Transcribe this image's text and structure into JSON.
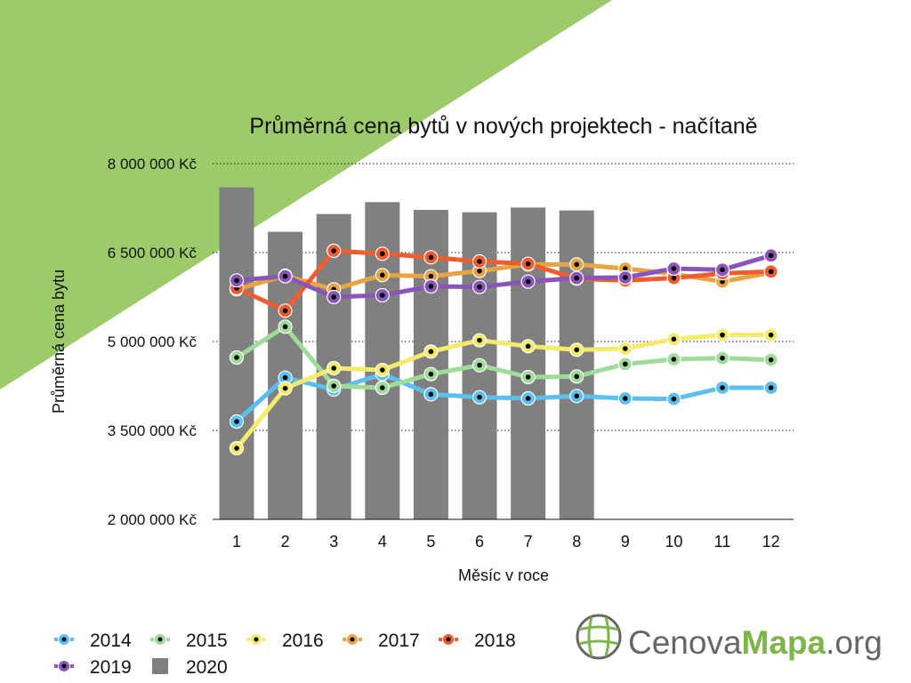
{
  "chart_data": {
    "type": "line",
    "title": "Průměrná cena bytů v nových projektech - načítaně",
    "xlabel": "Měsíc v roce",
    "ylabel": "Průměrná cena bytu",
    "ylim": [
      2000000,
      8000000
    ],
    "yticks": [
      {
        "value": 2000000,
        "label": "2 000 000 Kč"
      },
      {
        "value": 3500000,
        "label": "3 500 000 Kč"
      },
      {
        "value": 5000000,
        "label": "5 000 000 Kč"
      },
      {
        "value": 6500000,
        "label": "6 500 000 Kč"
      },
      {
        "value": 8000000,
        "label": "8 000 000 Kč"
      }
    ],
    "categories": [
      "1",
      "2",
      "3",
      "4",
      "5",
      "6",
      "7",
      "8",
      "9",
      "10",
      "11",
      "12"
    ],
    "grid": true,
    "legend_position": "bottom-left",
    "bars": {
      "name": "2020",
      "color": "#808080",
      "values": [
        7600000,
        6850000,
        7150000,
        7350000,
        7220000,
        7180000,
        7260000,
        7210000
      ]
    },
    "series": [
      {
        "name": "2014",
        "color": "#5bc0f0",
        "values": [
          3650000,
          4390000,
          4190000,
          4450000,
          4110000,
          4060000,
          4040000,
          4080000,
          4040000,
          4030000,
          4220000,
          4220000
        ]
      },
      {
        "name": "2015",
        "color": "#9fdc9a",
        "values": [
          4730000,
          5250000,
          4250000,
          4220000,
          4450000,
          4600000,
          4400000,
          4410000,
          4620000,
          4700000,
          4720000,
          4690000
        ]
      },
      {
        "name": "2016",
        "color": "#f3eb69",
        "values": [
          3200000,
          4210000,
          4550000,
          4520000,
          4830000,
          5020000,
          4920000,
          4860000,
          4880000,
          5040000,
          5110000,
          5110000
        ]
      },
      {
        "name": "2017",
        "color": "#e8a440",
        "values": [
          5880000,
          6110000,
          5880000,
          6120000,
          6100000,
          6190000,
          6300000,
          6300000,
          6230000,
          6140000,
          6010000,
          6160000
        ]
      },
      {
        "name": "2018",
        "color": "#ef5c2f",
        "values": [
          5900000,
          5520000,
          6530000,
          6480000,
          6420000,
          6350000,
          6310000,
          6060000,
          6030000,
          6070000,
          6150000,
          6180000
        ]
      },
      {
        "name": "2019",
        "color": "#8a55b8",
        "values": [
          6030000,
          6100000,
          5750000,
          5780000,
          5930000,
          5920000,
          6010000,
          6070000,
          6080000,
          6230000,
          6210000,
          6450000
        ]
      }
    ]
  },
  "logo": {
    "part1": "Cenova",
    "part2": "Mapa",
    "part3": ".org"
  },
  "colors": {
    "green_accent": "#9dcb6a",
    "logo_gray": "#666666",
    "logo_green": "#7ab648",
    "grid": "#111111"
  }
}
